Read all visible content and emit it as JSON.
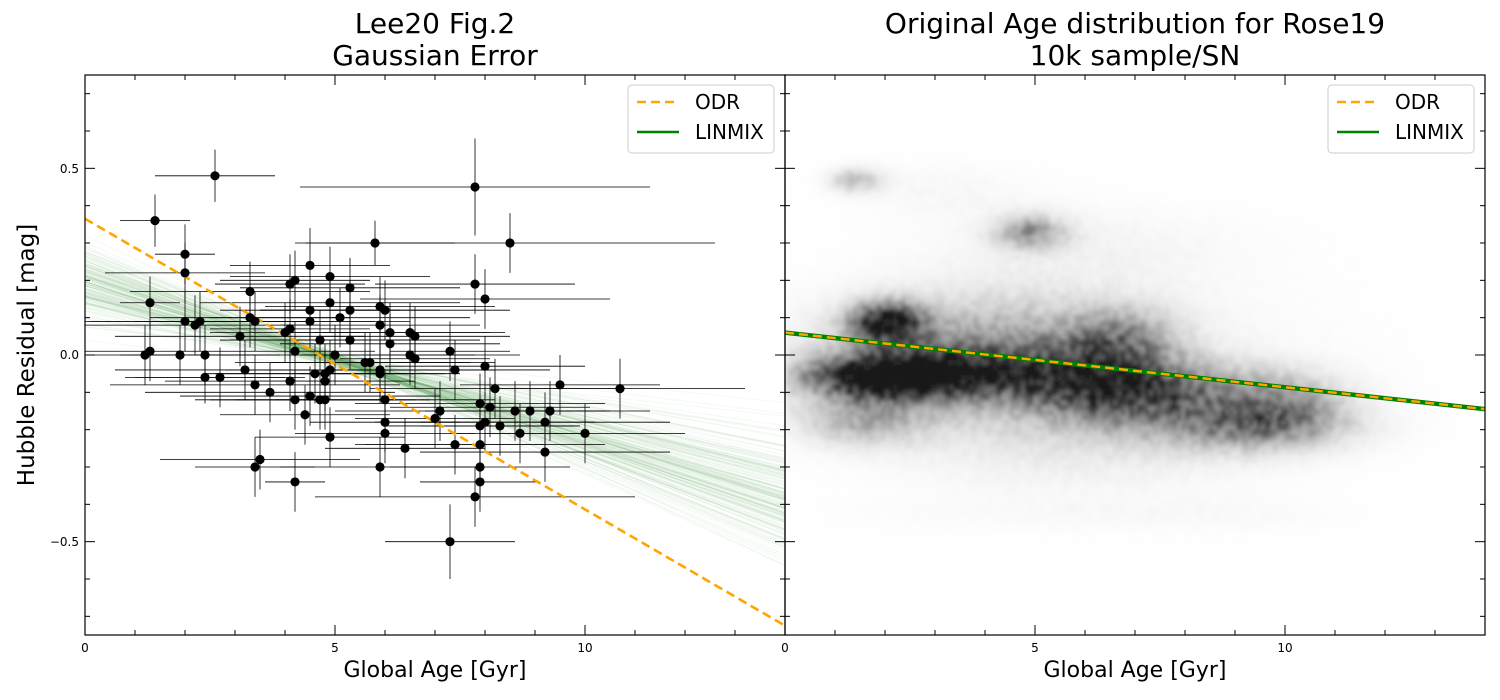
{
  "figure": {
    "ylabel": "Hubble Residual [mag]"
  },
  "chart_data": [
    {
      "type": "scatter",
      "title_line1": "Lee20 Fig.2",
      "title_line2": "Gaussian Error",
      "xlabel": "Global Age [Gyr]",
      "ylabel": "Hubble Residual [mag]",
      "xlim": [
        0,
        14
      ],
      "ylim": [
        -0.75,
        0.75
      ],
      "xticks": [
        0,
        5,
        10
      ],
      "yticks": [
        -0.5,
        0.0,
        0.5
      ],
      "xtick_labels": [
        "0",
        "5",
        "10"
      ],
      "ytick_labels": [
        "−0.5",
        "0.0",
        "0.5"
      ],
      "legend_position": "top-right",
      "legend": [
        {
          "label": "ODR",
          "style": "dashed",
          "color": "#ffa500"
        },
        {
          "label": "LINMIX",
          "style": "solid",
          "color": "#008000"
        }
      ],
      "odr_line": {
        "x": [
          0,
          14
        ],
        "y": [
          0.365,
          -0.725
        ]
      },
      "linmix_fit": {
        "intercept": 0.2,
        "slope": -0.042,
        "color": "#2e8b2e"
      },
      "points": [
        {
          "x": 1.2,
          "y": 0.0,
          "xerr": 0.5,
          "yerr": 0.08
        },
        {
          "x": 1.3,
          "y": 0.14,
          "xerr": 0.6,
          "yerr": 0.07
        },
        {
          "x": 1.3,
          "y": 0.01,
          "xerr": 1.3,
          "yerr": 0.08
        },
        {
          "x": 1.4,
          "y": 0.36,
          "xerr": 0.7,
          "yerr": 0.07
        },
        {
          "x": 1.9,
          "y": 0.0,
          "xerr": 1.8,
          "yerr": 0.08
        },
        {
          "x": 2.0,
          "y": 0.27,
          "xerr": 0.6,
          "yerr": 0.08
        },
        {
          "x": 2.0,
          "y": 0.22,
          "xerr": 1.6,
          "yerr": 0.08
        },
        {
          "x": 2.0,
          "y": 0.09,
          "xerr": 2.0,
          "yerr": 0.08
        },
        {
          "x": 2.2,
          "y": 0.08,
          "xerr": 2.5,
          "yerr": 0.08
        },
        {
          "x": 2.3,
          "y": 0.09,
          "xerr": 2.2,
          "yerr": 0.08
        },
        {
          "x": 2.4,
          "y": 0.0,
          "xerr": 1.5,
          "yerr": 0.08
        },
        {
          "x": 2.4,
          "y": -0.06,
          "xerr": 1.6,
          "yerr": 0.07
        },
        {
          "x": 2.6,
          "y": 0.48,
          "xerr": 1.2,
          "yerr": 0.07
        },
        {
          "x": 2.7,
          "y": -0.06,
          "xerr": 1.7,
          "yerr": 0.08
        },
        {
          "x": 3.1,
          "y": 0.05,
          "xerr": 2.5,
          "yerr": 0.08
        },
        {
          "x": 3.2,
          "y": -0.04,
          "xerr": 2.6,
          "yerr": 0.08
        },
        {
          "x": 3.3,
          "y": 0.17,
          "xerr": 2.4,
          "yerr": 0.08
        },
        {
          "x": 3.3,
          "y": 0.1,
          "xerr": 2.0,
          "yerr": 0.08
        },
        {
          "x": 3.4,
          "y": 0.09,
          "xerr": 2.4,
          "yerr": 0.08
        },
        {
          "x": 3.4,
          "y": -0.08,
          "xerr": 2.9,
          "yerr": 0.08
        },
        {
          "x": 3.4,
          "y": -0.3,
          "xerr": 1.2,
          "yerr": 0.08
        },
        {
          "x": 3.5,
          "y": -0.28,
          "xerr": 2.0,
          "yerr": 0.08
        },
        {
          "x": 3.7,
          "y": -0.1,
          "xerr": 2.5,
          "yerr": 0.08
        },
        {
          "x": 4.0,
          "y": 0.06,
          "xerr": 1.5,
          "yerr": 0.08
        },
        {
          "x": 4.1,
          "y": 0.19,
          "xerr": 1.5,
          "yerr": 0.08
        },
        {
          "x": 4.1,
          "y": 0.07,
          "xerr": 1.6,
          "yerr": 0.08
        },
        {
          "x": 4.1,
          "y": -0.07,
          "xerr": 2.5,
          "yerr": 0.08
        },
        {
          "x": 4.2,
          "y": 0.2,
          "xerr": 1.5,
          "yerr": 0.08
        },
        {
          "x": 4.2,
          "y": 0.01,
          "xerr": 1.6,
          "yerr": 0.08
        },
        {
          "x": 4.2,
          "y": -0.12,
          "xerr": 2.0,
          "yerr": 0.08
        },
        {
          "x": 4.2,
          "y": -0.34,
          "xerr": 0.6,
          "yerr": 0.08
        },
        {
          "x": 4.4,
          "y": -0.16,
          "xerr": 1.7,
          "yerr": 0.08
        },
        {
          "x": 4.5,
          "y": 0.24,
          "xerr": 1.6,
          "yerr": 0.1
        },
        {
          "x": 4.5,
          "y": 0.12,
          "xerr": 1.8,
          "yerr": 0.08
        },
        {
          "x": 4.5,
          "y": 0.09,
          "xerr": 2.0,
          "yerr": 0.08
        },
        {
          "x": 4.5,
          "y": -0.11,
          "xerr": 2.6,
          "yerr": 0.08
        },
        {
          "x": 4.6,
          "y": -0.05,
          "xerr": 2.0,
          "yerr": 0.08
        },
        {
          "x": 4.7,
          "y": 0.04,
          "xerr": 1.8,
          "yerr": 0.08
        },
        {
          "x": 4.7,
          "y": -0.12,
          "xerr": 2.2,
          "yerr": 0.08
        },
        {
          "x": 4.8,
          "y": -0.05,
          "xerr": 2.4,
          "yerr": 0.08
        },
        {
          "x": 4.8,
          "y": -0.07,
          "xerr": 1.5,
          "yerr": 0.08
        },
        {
          "x": 4.8,
          "y": -0.12,
          "xerr": 1.8,
          "yerr": 0.08
        },
        {
          "x": 4.9,
          "y": 0.21,
          "xerr": 2.0,
          "yerr": 0.08
        },
        {
          "x": 4.9,
          "y": 0.14,
          "xerr": 2.6,
          "yerr": 0.08
        },
        {
          "x": 4.9,
          "y": -0.04,
          "xerr": 2.1,
          "yerr": 0.08
        },
        {
          "x": 4.9,
          "y": -0.22,
          "xerr": 1.5,
          "yerr": 0.08
        },
        {
          "x": 5.0,
          "y": 0.0,
          "xerr": 2.8,
          "yerr": 0.08
        },
        {
          "x": 5.1,
          "y": 0.1,
          "xerr": 2.6,
          "yerr": 0.08
        },
        {
          "x": 5.3,
          "y": 0.18,
          "xerr": 2.2,
          "yerr": 0.08
        },
        {
          "x": 5.3,
          "y": 0.12,
          "xerr": 1.8,
          "yerr": 0.08
        },
        {
          "x": 5.3,
          "y": 0.04,
          "xerr": 2.6,
          "yerr": 0.08
        },
        {
          "x": 5.6,
          "y": -0.02,
          "xerr": 2.6,
          "yerr": 0.08
        },
        {
          "x": 5.7,
          "y": -0.02,
          "xerr": 2.0,
          "yerr": 0.08
        },
        {
          "x": 5.8,
          "y": 0.3,
          "xerr": 1.6,
          "yerr": 0.06
        },
        {
          "x": 5.9,
          "y": 0.13,
          "xerr": 2.3,
          "yerr": 0.08
        },
        {
          "x": 5.9,
          "y": 0.08,
          "xerr": 2.0,
          "yerr": 0.08
        },
        {
          "x": 5.9,
          "y": -0.04,
          "xerr": 2.3,
          "yerr": 0.08
        },
        {
          "x": 5.9,
          "y": -0.05,
          "xerr": 1.6,
          "yerr": 0.08
        },
        {
          "x": 5.9,
          "y": -0.3,
          "xerr": 2.0,
          "yerr": 0.08
        },
        {
          "x": 6.0,
          "y": 0.12,
          "xerr": 2.5,
          "yerr": 0.08
        },
        {
          "x": 6.0,
          "y": -0.12,
          "xerr": 2.2,
          "yerr": 0.08
        },
        {
          "x": 6.0,
          "y": -0.18,
          "xerr": 1.5,
          "yerr": 0.08
        },
        {
          "x": 6.0,
          "y": -0.21,
          "xerr": 1.8,
          "yerr": 0.08
        },
        {
          "x": 6.1,
          "y": 0.06,
          "xerr": 2.0,
          "yerr": 0.08
        },
        {
          "x": 6.1,
          "y": 0.03,
          "xerr": 2.2,
          "yerr": 0.08
        },
        {
          "x": 6.4,
          "y": -0.25,
          "xerr": 1.6,
          "yerr": 0.08
        },
        {
          "x": 6.5,
          "y": 0.06,
          "xerr": 1.9,
          "yerr": 0.08
        },
        {
          "x": 6.5,
          "y": 0.0,
          "xerr": 2.2,
          "yerr": 0.08
        },
        {
          "x": 6.6,
          "y": 0.05,
          "xerr": 1.9,
          "yerr": 0.08
        },
        {
          "x": 6.6,
          "y": -0.01,
          "xerr": 1.5,
          "yerr": 0.08
        },
        {
          "x": 7.0,
          "y": -0.17,
          "xerr": 1.6,
          "yerr": 0.08
        },
        {
          "x": 7.1,
          "y": -0.15,
          "xerr": 2.1,
          "yerr": 0.08
        },
        {
          "x": 7.3,
          "y": 0.01,
          "xerr": 1.2,
          "yerr": 0.08
        },
        {
          "x": 7.3,
          "y": -0.5,
          "xerr": 1.3,
          "yerr": 0.1
        },
        {
          "x": 7.4,
          "y": -0.04,
          "xerr": 1.9,
          "yerr": 0.08
        },
        {
          "x": 7.4,
          "y": -0.24,
          "xerr": 1.8,
          "yerr": 0.08
        },
        {
          "x": 7.8,
          "y": 0.45,
          "xerr": 3.5,
          "yerr": 0.13
        },
        {
          "x": 7.8,
          "y": 0.19,
          "xerr": 2.0,
          "yerr": 0.08
        },
        {
          "x": 7.8,
          "y": -0.38,
          "xerr": 3.2,
          "yerr": 0.08
        },
        {
          "x": 7.9,
          "y": -0.13,
          "xerr": 2.5,
          "yerr": 0.08
        },
        {
          "x": 7.9,
          "y": -0.19,
          "xerr": 1.9,
          "yerr": 0.08
        },
        {
          "x": 7.9,
          "y": -0.24,
          "xerr": 2.5,
          "yerr": 0.08
        },
        {
          "x": 7.9,
          "y": -0.3,
          "xerr": 1.8,
          "yerr": 0.08
        },
        {
          "x": 7.9,
          "y": -0.34,
          "xerr": 1.2,
          "yerr": 0.08
        },
        {
          "x": 8.0,
          "y": 0.15,
          "xerr": 2.5,
          "yerr": 0.08
        },
        {
          "x": 8.0,
          "y": -0.03,
          "xerr": 2.0,
          "yerr": 0.08
        },
        {
          "x": 8.0,
          "y": -0.18,
          "xerr": 2.2,
          "yerr": 0.08
        },
        {
          "x": 8.1,
          "y": -0.14,
          "xerr": 2.0,
          "yerr": 0.08
        },
        {
          "x": 8.2,
          "y": -0.09,
          "xerr": 2.5,
          "yerr": 0.08
        },
        {
          "x": 8.3,
          "y": -0.19,
          "xerr": 1.6,
          "yerr": 0.08
        },
        {
          "x": 8.5,
          "y": 0.3,
          "xerr": 4.1,
          "yerr": 0.08
        },
        {
          "x": 8.6,
          "y": -0.15,
          "xerr": 1.8,
          "yerr": 0.08
        },
        {
          "x": 8.7,
          "y": -0.21,
          "xerr": 1.4,
          "yerr": 0.08
        },
        {
          "x": 8.9,
          "y": -0.15,
          "xerr": 1.6,
          "yerr": 0.08
        },
        {
          "x": 9.2,
          "y": -0.18,
          "xerr": 2.5,
          "yerr": 0.08
        },
        {
          "x": 9.2,
          "y": -0.26,
          "xerr": 2.5,
          "yerr": 0.08
        },
        {
          "x": 9.3,
          "y": -0.15,
          "xerr": 2.0,
          "yerr": 0.08
        },
        {
          "x": 9.5,
          "y": -0.08,
          "xerr": 2.0,
          "yerr": 0.08
        },
        {
          "x": 10.0,
          "y": -0.21,
          "xerr": 2.0,
          "yerr": 0.08
        },
        {
          "x": 10.7,
          "y": -0.09,
          "xerr": 2.5,
          "yerr": 0.08
        }
      ]
    },
    {
      "type": "heatmap",
      "title_line1": "Original Age distribution for Rose19",
      "title_line2": "10k sample/SN",
      "xlabel": "Global Age [Gyr]",
      "xlim": [
        0,
        14
      ],
      "ylim": [
        -0.75,
        0.75
      ],
      "xticks": [
        0,
        5,
        10
      ],
      "xtick_labels": [
        "0",
        "5",
        "10"
      ],
      "legend_position": "top-right",
      "legend": [
        {
          "label": "ODR",
          "style": "dashed",
          "color": "#ffa500"
        },
        {
          "label": "LINMIX",
          "style": "solid",
          "color": "#008000"
        }
      ],
      "odr_line": {
        "x": [
          0,
          14
        ],
        "y": [
          0.06,
          -0.145
        ]
      },
      "linmix_line": {
        "x": [
          0,
          14
        ],
        "y": [
          0.06,
          -0.145
        ]
      },
      "density_blobs": [
        {
          "x": 1.4,
          "y": 0.47,
          "sx": 0.4,
          "sy": 0.025,
          "w": 0.45
        },
        {
          "x": 3.0,
          "y": 0.45,
          "sx": 1.5,
          "sy": 0.06,
          "w": 0.12
        },
        {
          "x": 4.9,
          "y": 0.33,
          "sx": 0.55,
          "sy": 0.035,
          "w": 0.5
        },
        {
          "x": 6.0,
          "y": 0.3,
          "sx": 2.5,
          "sy": 0.08,
          "w": 0.12
        },
        {
          "x": 2.0,
          "y": 0.09,
          "sx": 0.55,
          "sy": 0.04,
          "w": 0.75
        },
        {
          "x": 4.0,
          "y": 0.05,
          "sx": 2.5,
          "sy": 0.1,
          "w": 0.45
        },
        {
          "x": 6.8,
          "y": 0.05,
          "sx": 0.8,
          "sy": 0.06,
          "w": 0.35
        },
        {
          "x": 2.0,
          "y": -0.06,
          "sx": 1.2,
          "sy": 0.04,
          "w": 0.7
        },
        {
          "x": 4.0,
          "y": -0.05,
          "sx": 2.7,
          "sy": 0.06,
          "w": 0.5
        },
        {
          "x": 7.0,
          "y": -0.1,
          "sx": 1.5,
          "sy": 0.06,
          "w": 0.5
        },
        {
          "x": 10.0,
          "y": -0.12,
          "sx": 1.0,
          "sy": 0.06,
          "w": 0.4
        },
        {
          "x": 1.5,
          "y": -0.18,
          "sx": 1.0,
          "sy": 0.05,
          "w": 0.4
        },
        {
          "x": 6.0,
          "y": -0.18,
          "sx": 3.0,
          "sy": 0.06,
          "w": 0.25
        },
        {
          "x": 9.5,
          "y": -0.2,
          "sx": 1.5,
          "sy": 0.05,
          "w": 0.4
        },
        {
          "x": 5.5,
          "y": -0.3,
          "sx": 2.8,
          "sy": 0.06,
          "w": 0.15
        },
        {
          "x": 4.0,
          "y": -0.43,
          "sx": 3.0,
          "sy": 0.04,
          "w": 0.08
        },
        {
          "x": 9.0,
          "y": -0.43,
          "sx": 2.0,
          "sy": 0.04,
          "w": 0.08
        },
        {
          "x": 7.0,
          "y": 0.0,
          "sx": 5.0,
          "sy": 0.3,
          "w": 0.1
        }
      ]
    }
  ]
}
